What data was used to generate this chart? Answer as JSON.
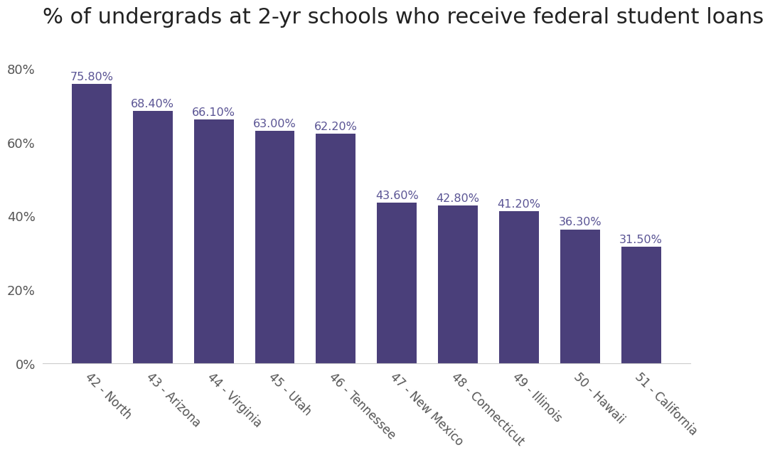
{
  "title": "% of undergrads at 2-yr schools who receive federal student loans",
  "categories": [
    "42 - North",
    "43 - Arizona",
    "44 - Virginia",
    "45 - Utah",
    "46 - Tennessee",
    "47 - New Mexico",
    "48 - Connecticut",
    "49 - Illinois",
    "50 - Hawaii",
    "51 - California"
  ],
  "values": [
    75.8,
    68.4,
    66.1,
    63.0,
    62.2,
    43.6,
    42.8,
    41.2,
    36.3,
    31.5
  ],
  "bar_color": "#4a3f7a",
  "label_color": "#5a5494",
  "title_color": "#222222",
  "background_color": "#ffffff",
  "ylim": [
    0,
    87
  ],
  "yticks": [
    0,
    20,
    40,
    60,
    80
  ],
  "ytick_labels": [
    "0%",
    "20%",
    "40%",
    "60%",
    "80%"
  ],
  "title_fontsize": 22,
  "label_fontsize": 11.5,
  "tick_fontsize": 13,
  "xtick_fontsize": 12,
  "bar_width": 0.65
}
